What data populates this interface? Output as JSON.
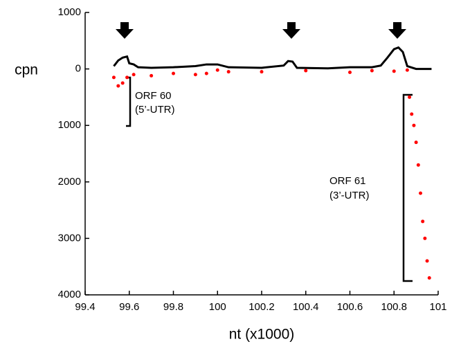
{
  "chart_data": {
    "type": "line",
    "x_label": "nt (x1000)",
    "y_label": "cpn",
    "annotations": [
      "ORF 60",
      "(5’-UTR)",
      "ORF 61",
      "(3’-UTR)"
    ],
    "xlim": [
      99.4,
      101
    ],
    "xticks": [
      99.4,
      99.6,
      99.8,
      100,
      100.2,
      100.4,
      100.6,
      100.8,
      101
    ],
    "ylim": [
      -4000,
      1000
    ],
    "yticks": [
      {
        "value": 1000,
        "label": "1000"
      },
      {
        "value": 0,
        "label": "0"
      },
      {
        "value": -1000,
        "label": "1000"
      },
      {
        "value": -2000,
        "label": "2000"
      },
      {
        "value": -3000,
        "label": "3000"
      },
      {
        "value": -4000,
        "label": "4000"
      }
    ],
    "series": [
      {
        "color": "#000000",
        "style": "line",
        "x": [
          99.53,
          99.55,
          99.57,
          99.59,
          99.6,
          99.62,
          99.64,
          99.7,
          99.8,
          99.9,
          99.95,
          100.0,
          100.05,
          100.2,
          100.3,
          100.32,
          100.34,
          100.36,
          100.5,
          100.6,
          100.7,
          100.74,
          100.77,
          100.8,
          100.82,
          100.84,
          100.86,
          100.9,
          100.97
        ],
        "values": [
          50,
          150,
          200,
          220,
          100,
          80,
          30,
          20,
          30,
          50,
          80,
          80,
          30,
          20,
          60,
          140,
          130,
          20,
          10,
          30,
          30,
          60,
          200,
          350,
          380,
          300,
          50,
          0,
          0
        ]
      },
      {
        "color": "#ff0000",
        "style": "dots",
        "x": [
          99.53,
          99.55,
          99.57,
          99.59,
          99.62,
          99.7,
          99.8,
          99.9,
          99.95,
          100.0,
          100.05,
          100.2,
          100.4,
          100.6,
          100.7,
          100.8,
          100.86,
          100.87,
          100.88,
          100.89,
          100.9,
          100.91,
          100.92,
          100.93,
          100.94,
          100.95,
          100.96
        ],
        "values": [
          -150,
          -300,
          -250,
          -150,
          -100,
          -120,
          -80,
          -100,
          -80,
          -20,
          -50,
          -50,
          -30,
          -60,
          -30,
          -40,
          -20,
          -500,
          -800,
          -1000,
          -1300,
          -1700,
          -2200,
          -2700,
          -3000,
          -3400,
          -3700
        ]
      }
    ]
  }
}
